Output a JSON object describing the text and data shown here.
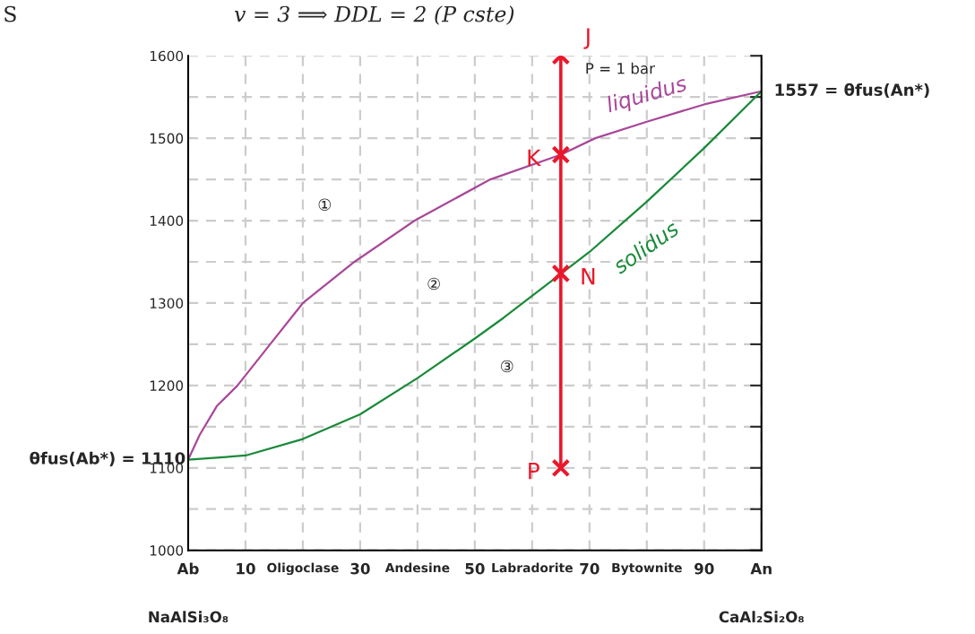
{
  "chart_data": {
    "type": "line",
    "title": "v = 3 ⟹ DDL = 2 (P cste)",
    "xlim": [
      0,
      100
    ],
    "ylim": [
      1000,
      1600
    ],
    "xticks": [
      {
        "value": 0,
        "label": "Ab"
      },
      10,
      {
        "value": 20,
        "label": "Oligoclase"
      },
      30,
      {
        "value": 40,
        "label": "Andesine"
      },
      50,
      {
        "value": 60,
        "label": "Labradorite"
      },
      70,
      {
        "value": 80,
        "label": "Bytownite"
      },
      90,
      {
        "value": 100,
        "label": "An"
      }
    ],
    "yticks": [
      1000,
      {
        "value": 1050,
        "label": null
      },
      1100,
      {
        "value": 1150,
        "label": null
      },
      1200,
      {
        "value": 1250,
        "label": null
      },
      1300,
      {
        "value": 1350,
        "label": null
      },
      1400,
      {
        "value": 1450,
        "label": null
      },
      1500,
      {
        "value": 1550,
        "label": null
      },
      1600
    ],
    "grid": true,
    "legend": false,
    "series": [
      {
        "name": "liquidus",
        "color": "#a8479a",
        "x": [
          0,
          2,
          5,
          8.6,
          14.3,
          20,
          29,
          39.5,
          52.7,
          65,
          71,
          80,
          90,
          100
        ],
        "values": [
          1110,
          1140,
          1175,
          1200,
          1250,
          1300,
          1350,
          1400,
          1450,
          1480,
          1500,
          1520,
          1541,
          1557
        ]
      },
      {
        "name": "solidus",
        "color": "#1a8a3a",
        "x": [
          0,
          10,
          20,
          30,
          40,
          50,
          55,
          70,
          80,
          90,
          100
        ],
        "values": [
          1110,
          1115,
          1135,
          1165,
          1209,
          1257,
          1282,
          1362,
          1423,
          1488,
          1557
        ]
      },
      {
        "color": "#e8192c",
        "marker": "cross",
        "x": [
          65,
          65,
          65,
          65
        ],
        "values": [
          1600,
          1480,
          1336,
          1100
        ],
        "value_labels": [
          "J",
          "K",
          "N",
          "P"
        ]
      }
    ],
    "annotations": [
      "S",
      "NaAlSi₃O₈",
      "CaAl₂Si₂O₈",
      "P = 1 bar",
      "①",
      "②",
      "③",
      {
        "text": "1557 = θfus(An*)",
        "x": 100,
        "y": 1557
      },
      {
        "text": "θfus(Ab*) = 1110",
        "x": 0,
        "y": 1110
      }
    ]
  }
}
